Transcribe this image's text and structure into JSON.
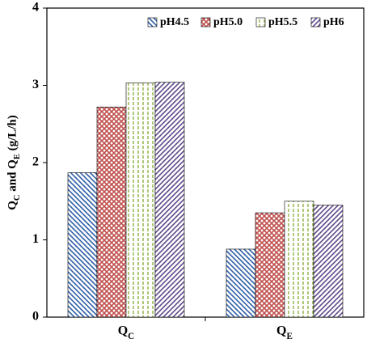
{
  "chart_data": {
    "type": "bar",
    "y_label": "QC and QE (g/L/h)",
    "categories": [
      "QC",
      "QE"
    ],
    "series": [
      {
        "name": "pH4.5",
        "color": "#2f5fa6",
        "pattern": "diagonal-down",
        "values": [
          1.87,
          0.88
        ]
      },
      {
        "name": "pH5.0",
        "color": "#c0504d",
        "pattern": "crosshatch",
        "values": [
          2.72,
          1.35
        ]
      },
      {
        "name": "pH5.5",
        "color": "#9bbb59",
        "pattern": "vertical-dash",
        "values": [
          3.03,
          1.5
        ]
      },
      {
        "name": "pH6",
        "color": "#5f4a8b",
        "pattern": "diagonal-up",
        "values": [
          3.04,
          1.45
        ]
      }
    ],
    "ylim": [
      0,
      4
    ],
    "yticks": [
      0,
      1,
      2,
      3,
      4
    ],
    "legend": "top-right",
    "grid": false
  }
}
